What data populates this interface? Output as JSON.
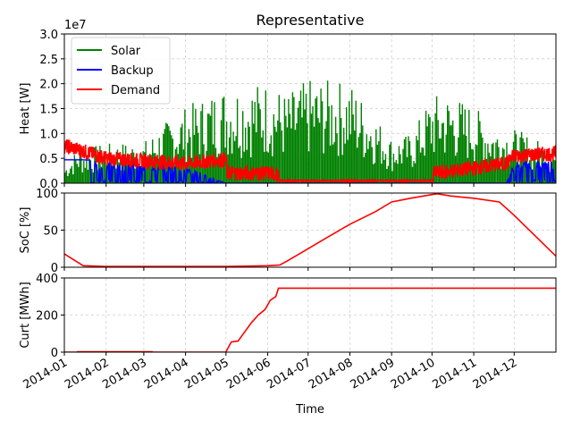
{
  "chart_data": {
    "type": "line",
    "title": "Representative",
    "xlabel": "Time",
    "x_ticks": [
      "2014-01",
      "2014-02",
      "2014-03",
      "2014-04",
      "2014-05",
      "2014-06",
      "2014-07",
      "2014-08",
      "2014-09",
      "2014-10",
      "2014-11",
      "2014-12"
    ],
    "xlim": [
      "2014-01-01",
      "2015-01-01"
    ],
    "grid": true,
    "panels": [
      {
        "id": "heat",
        "ylabel": "Heat [W]",
        "y_multiplier": "1e7",
        "ylim": [
          0,
          30000000
        ],
        "yticks": [
          "0.0",
          "0.5",
          "1.0",
          "1.5",
          "2.0",
          "2.5",
          "3.0"
        ],
        "legend_position": "top-left",
        "series": [
          {
            "name": "Solar",
            "color": "#008000",
            "style": "daily-spikes",
            "envelope": [
              [
                "2014-01-01",
                3500000
              ],
              [
                "2014-01-10",
                7000000
              ],
              [
                "2014-02-01",
                8000000
              ],
              [
                "2014-03-01",
                8500000
              ],
              [
                "2014-03-15",
                12000000
              ],
              [
                "2014-04-01",
                15500000
              ],
              [
                "2014-05-01",
                20000000
              ],
              [
                "2014-06-01",
                20500000
              ],
              [
                "2014-06-15",
                18000000
              ],
              [
                "2014-07-01",
                21000000
              ],
              [
                "2014-08-01",
                20500000
              ],
              [
                "2014-09-01",
                9000000
              ],
              [
                "2014-09-15",
                10000000
              ],
              [
                "2014-10-01",
                18000000
              ],
              [
                "2014-10-15",
                18000000
              ],
              [
                "2014-11-01",
                15500000
              ],
              [
                "2014-11-15",
                12000000
              ],
              [
                "2014-12-01",
                11000000
              ],
              [
                "2015-01-01",
                7000000
              ]
            ]
          },
          {
            "name": "Backup",
            "color": "#0000ff",
            "style": "line-then-spikes",
            "values": [
              [
                "2014-01-01",
                4700000
              ],
              [
                "2014-01-15",
                4700000
              ],
              [
                "2014-02-01",
                4500000
              ],
              [
                "2014-03-01",
                4000000
              ],
              [
                "2014-04-01",
                3500000
              ],
              [
                "2014-05-01",
                0
              ],
              [
                "2014-11-25",
                0
              ],
              [
                "2014-12-01",
                4500000
              ],
              [
                "2015-01-01",
                4500000
              ]
            ]
          },
          {
            "name": "Demand",
            "color": "#ff0000",
            "style": "noisy-line",
            "values": [
              [
                "2014-01-01",
                7500000
              ],
              [
                "2014-01-15",
                6500000
              ],
              [
                "2014-02-01",
                5000000
              ],
              [
                "2014-03-01",
                4500000
              ],
              [
                "2014-04-01",
                4000000
              ],
              [
                "2014-05-01",
                4800000
              ],
              [
                "2014-05-02",
                2000000
              ],
              [
                "2014-06-01",
                2000000
              ],
              [
                "2014-06-08",
                1800000
              ],
              [
                "2014-06-10",
                500000
              ],
              [
                "2014-09-01",
                500000
              ],
              [
                "2014-10-01",
                500000
              ],
              [
                "2014-10-02",
                2000000
              ],
              [
                "2014-11-01",
                3000000
              ],
              [
                "2014-11-25",
                4000000
              ],
              [
                "2014-12-01",
                5500000
              ],
              [
                "2015-01-01",
                6000000
              ]
            ]
          }
        ]
      },
      {
        "id": "soc",
        "ylabel": "SoC [%]",
        "ylim": [
          0,
          100
        ],
        "yticks": [
          "0",
          "50",
          "100"
        ],
        "series": [
          {
            "name": "",
            "color": "#ff0000",
            "values": [
              [
                "2014-01-01",
                18
              ],
              [
                "2014-01-08",
                10
              ],
              [
                "2014-01-15",
                2
              ],
              [
                "2014-02-01",
                1
              ],
              [
                "2014-03-01",
                1
              ],
              [
                "2014-04-01",
                1
              ],
              [
                "2014-05-01",
                1
              ],
              [
                "2014-06-01",
                2
              ],
              [
                "2014-06-10",
                3
              ],
              [
                "2014-06-15",
                8
              ],
              [
                "2014-07-01",
                25
              ],
              [
                "2014-07-15",
                40
              ],
              [
                "2014-08-01",
                58
              ],
              [
                "2014-08-20",
                75
              ],
              [
                "2014-09-01",
                88
              ],
              [
                "2014-09-15",
                93
              ],
              [
                "2014-10-01",
                98
              ],
              [
                "2014-10-05",
                99
              ],
              [
                "2014-10-15",
                96
              ],
              [
                "2014-11-01",
                93
              ],
              [
                "2014-11-20",
                88
              ],
              [
                "2014-12-01",
                70
              ],
              [
                "2014-12-15",
                45
              ],
              [
                "2015-01-01",
                15
              ]
            ]
          }
        ]
      },
      {
        "id": "curt",
        "ylabel": "Curt [MWh]",
        "ylim": [
          0,
          400
        ],
        "yticks": [
          "0",
          "200",
          "400"
        ],
        "series": [
          {
            "name": "",
            "color": "#ff0000",
            "values": [
              [
                "2014-01-01",
                0
              ],
              [
                "2014-01-10",
                0
              ],
              [
                "2014-01-11",
                2
              ],
              [
                "2014-03-07",
                2
              ],
              [
                "2014-03-08",
                0
              ],
              [
                "2014-05-01",
                0
              ],
              [
                "2014-05-02",
                15
              ],
              [
                "2014-05-05",
                55
              ],
              [
                "2014-05-10",
                60
              ],
              [
                "2014-05-15",
                110
              ],
              [
                "2014-05-20",
                160
              ],
              [
                "2014-05-25",
                200
              ],
              [
                "2014-05-30",
                230
              ],
              [
                "2014-06-03",
                280
              ],
              [
                "2014-06-07",
                300
              ],
              [
                "2014-06-09",
                345
              ],
              [
                "2014-07-01",
                345
              ],
              [
                "2014-10-01",
                345
              ],
              [
                "2015-01-01",
                345
              ]
            ]
          }
        ]
      }
    ]
  }
}
